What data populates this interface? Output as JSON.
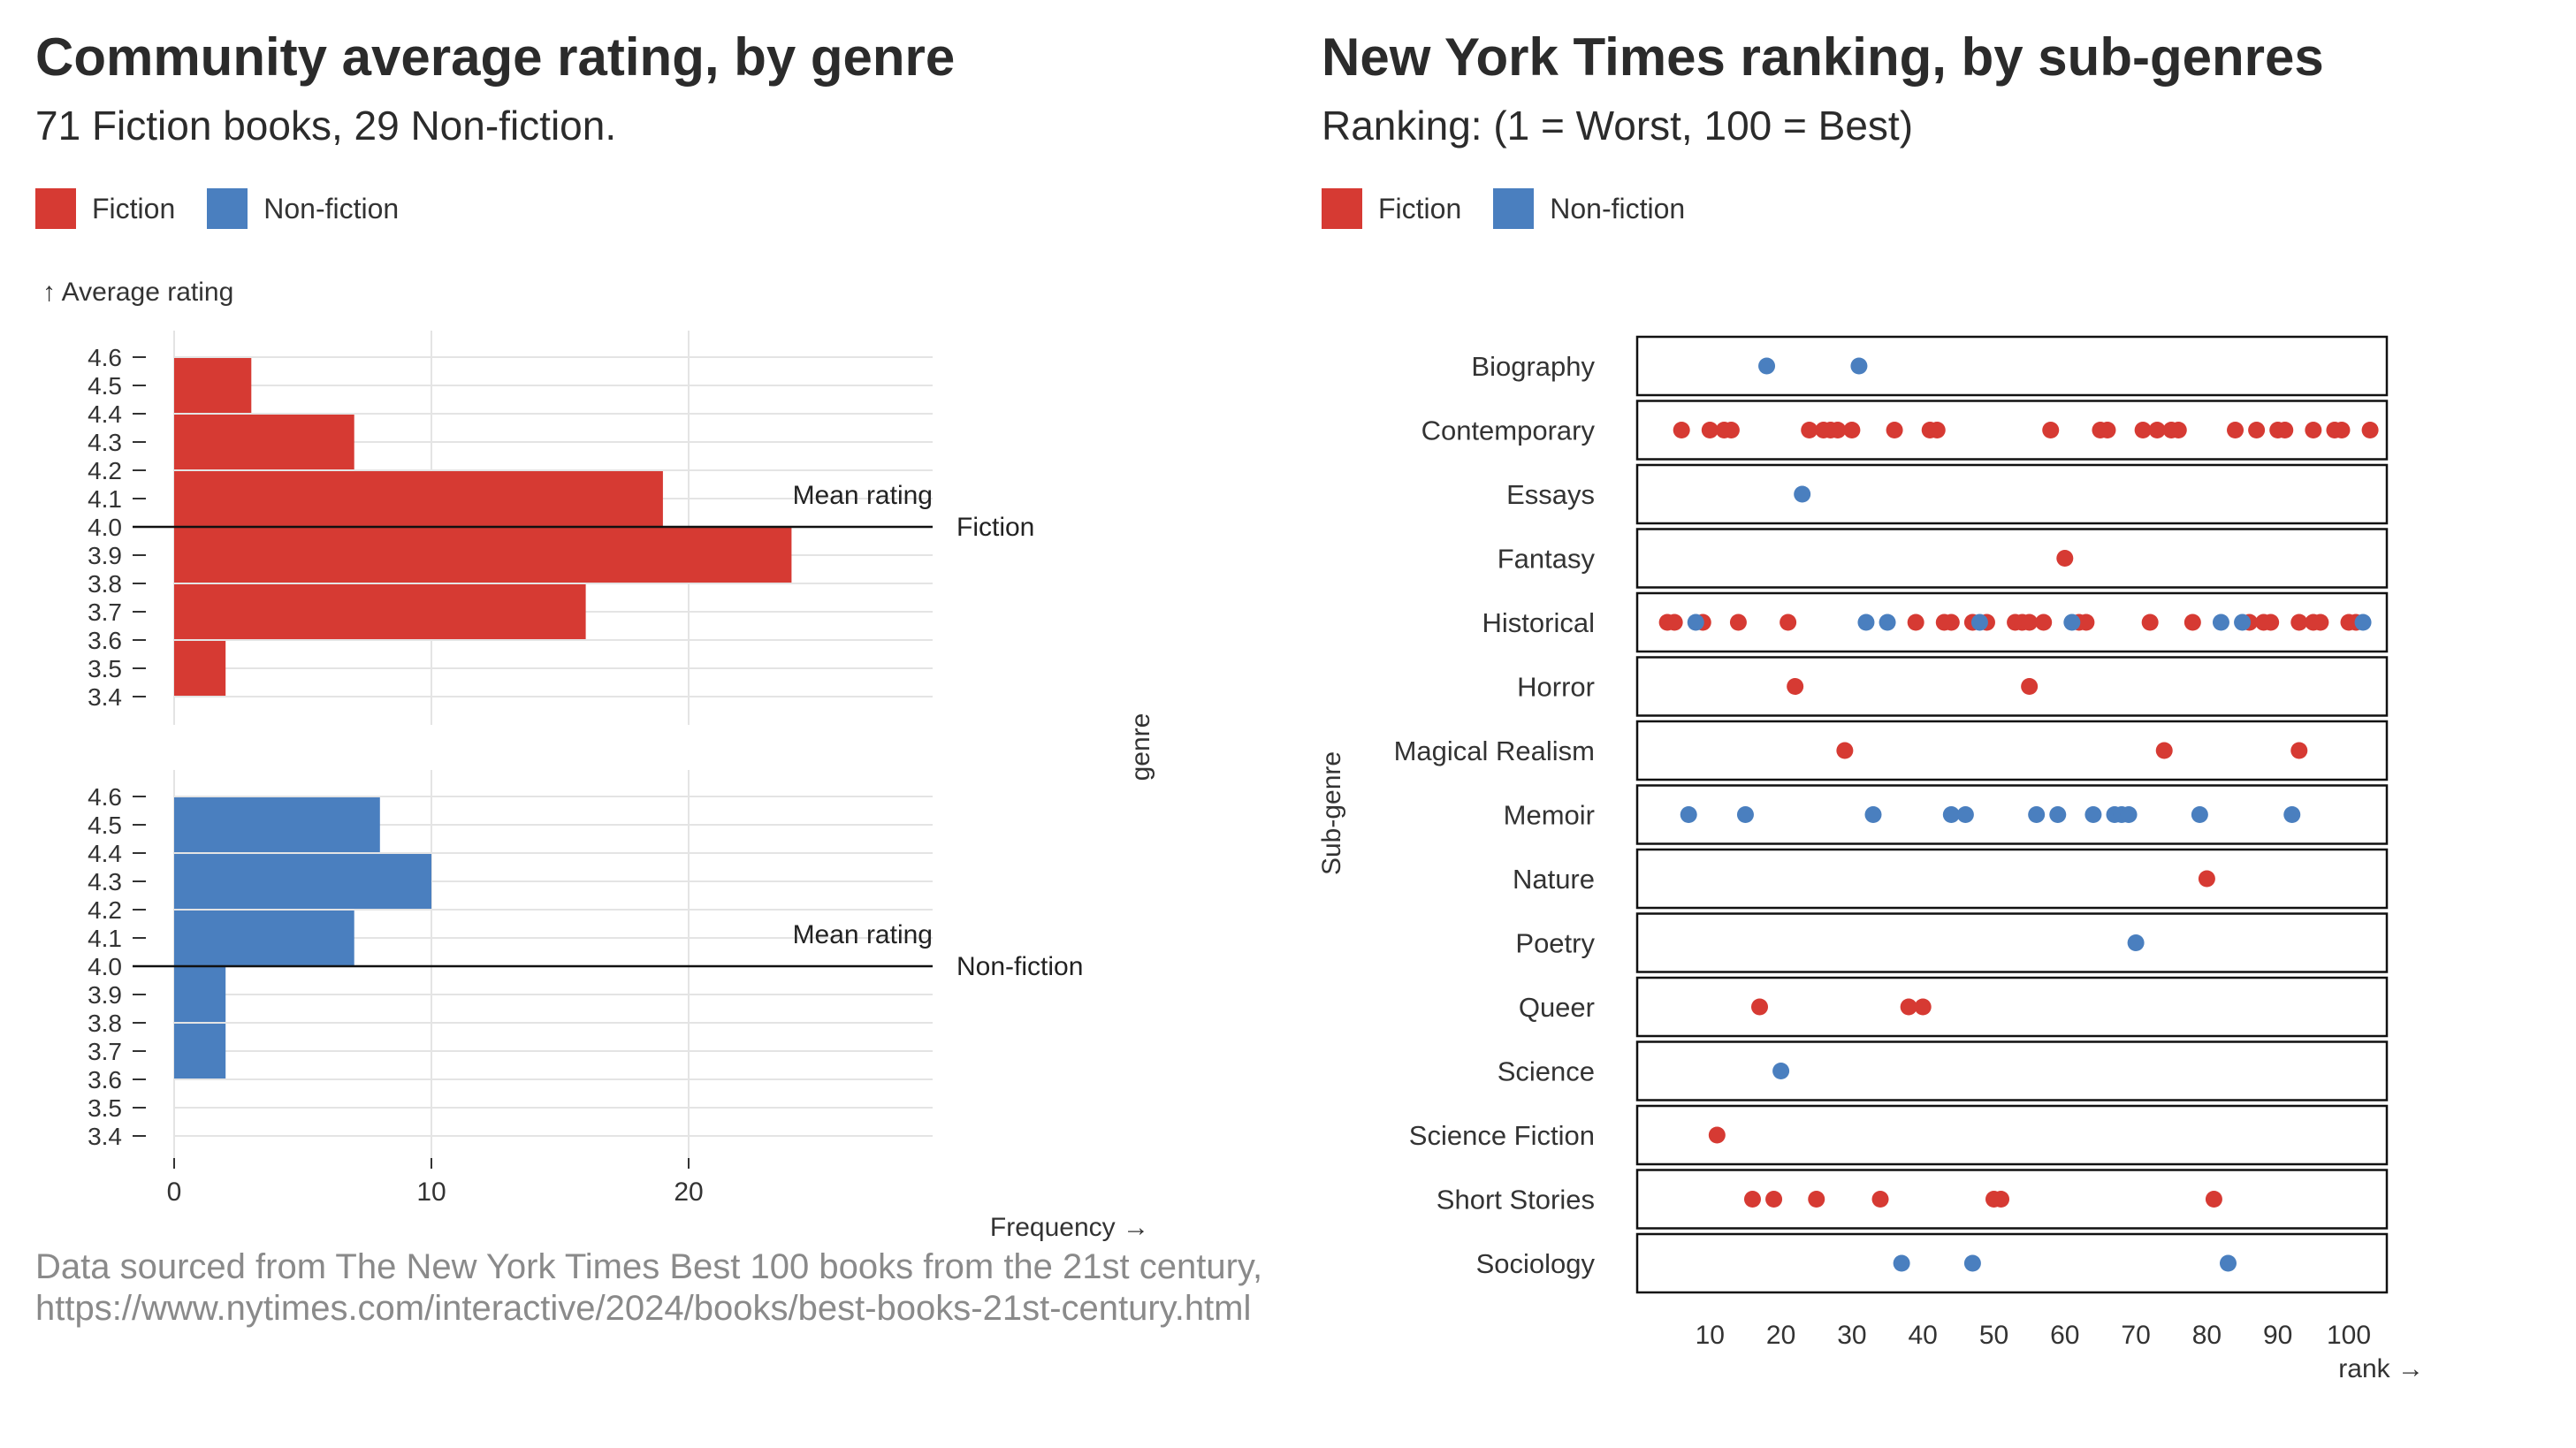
{
  "left": {
    "title": "Community average rating, by genre",
    "subtitle": "71 Fiction books, 29 Non-fiction.",
    "legend": [
      {
        "label": "Fiction",
        "color": "#d63a33"
      },
      {
        "label": "Non-fiction",
        "color": "#4a7fbf"
      }
    ],
    "footnote": "Data sourced from The New York Times Best 100 books from the 21st century, https://www.nytimes.com/interactive/2024/books/best-books-21st-century.html"
  },
  "right": {
    "title": "New York Times ranking, by sub-genres",
    "subtitle": "Ranking: (1 = Worst, 100 = Best)",
    "legend": [
      {
        "label": "Fiction",
        "color": "#d63a33"
      },
      {
        "label": "Non-fiction",
        "color": "#4a7fbf"
      }
    ]
  },
  "chart_data": [
    {
      "type": "bar",
      "orientation": "horizontal",
      "ylabel": "↑ Average rating",
      "xlabel": "Frequency →",
      "facet_label": "genre",
      "y_ticks": [
        "4.6",
        "4.5",
        "4.4",
        "4.3",
        "4.2",
        "4.1",
        "4.0",
        "3.9",
        "3.8",
        "3.7",
        "3.6",
        "3.5",
        "3.4"
      ],
      "x_ticks": [
        "0",
        "10",
        "20"
      ],
      "xlim": [
        0,
        29
      ],
      "ylim": [
        3.4,
        4.6
      ],
      "mean_label": "Mean rating",
      "mean_value": 4.0,
      "grid": true,
      "facets": [
        {
          "name": "Fiction",
          "color": "#d63a33",
          "bins": [
            {
              "from": 4.4,
              "to": 4.6,
              "count": 3
            },
            {
              "from": 4.2,
              "to": 4.4,
              "count": 7
            },
            {
              "from": 4.0,
              "to": 4.2,
              "count": 19
            },
            {
              "from": 3.8,
              "to": 4.0,
              "count": 24
            },
            {
              "from": 3.6,
              "to": 3.8,
              "count": 16
            },
            {
              "from": 3.4,
              "to": 3.6,
              "count": 2
            }
          ]
        },
        {
          "name": "Non-fiction",
          "color": "#4a7fbf",
          "bins": [
            {
              "from": 4.4,
              "to": 4.6,
              "count": 8
            },
            {
              "from": 4.2,
              "to": 4.4,
              "count": 10
            },
            {
              "from": 4.0,
              "to": 4.2,
              "count": 7
            },
            {
              "from": 3.8,
              "to": 4.0,
              "count": 2
            },
            {
              "from": 3.6,
              "to": 3.8,
              "count": 2
            }
          ]
        }
      ]
    },
    {
      "type": "scatter",
      "ylabel": "Sub-genre",
      "xlabel": "rank →",
      "x_ticks": [
        "10",
        "20",
        "30",
        "40",
        "50",
        "60",
        "70",
        "80",
        "90",
        "100"
      ],
      "xlim": [
        0,
        103
      ],
      "categories": [
        "Biography",
        "Contemporary",
        "Essays",
        "Fantasy",
        "Historical",
        "Horror",
        "Magical Realism",
        "Memoir",
        "Nature",
        "Poetry",
        "Queer",
        "Science",
        "Science Fiction",
        "Short Stories",
        "Sociology"
      ],
      "series": [
        {
          "name": "Fiction",
          "color": "#d63a33",
          "points": [
            {
              "category": "Contemporary",
              "x": [
                6,
                10,
                12,
                13,
                24,
                26,
                27,
                28,
                30,
                36,
                41,
                42,
                58,
                65,
                66,
                71,
                73,
                75,
                76,
                84,
                87,
                90,
                91,
                95,
                98,
                99,
                103
              ]
            },
            {
              "category": "Fantasy",
              "x": [
                60
              ]
            },
            {
              "category": "Historical",
              "x": [
                4,
                5,
                9,
                14,
                21,
                39,
                43,
                44,
                47,
                49,
                53,
                54,
                55,
                57,
                62,
                63,
                72,
                78,
                86,
                88,
                89,
                93,
                95,
                96,
                100,
                101
              ]
            },
            {
              "category": "Horror",
              "x": [
                22,
                55
              ]
            },
            {
              "category": "Magical Realism",
              "x": [
                29,
                74,
                93
              ]
            },
            {
              "category": "Nature",
              "x": [
                80
              ]
            },
            {
              "category": "Queer",
              "x": [
                17,
                38,
                40
              ]
            },
            {
              "category": "Science Fiction",
              "x": [
                11
              ]
            },
            {
              "category": "Short Stories",
              "x": [
                16,
                19,
                25,
                34,
                50,
                51,
                81
              ]
            }
          ]
        },
        {
          "name": "Non-fiction",
          "color": "#4a7fbf",
          "points": [
            {
              "category": "Biography",
              "x": [
                18,
                31
              ]
            },
            {
              "category": "Essays",
              "x": [
                23
              ]
            },
            {
              "category": "Historical",
              "x": [
                8,
                32,
                35,
                48,
                61,
                82,
                85,
                102
              ]
            },
            {
              "category": "Memoir",
              "x": [
                7,
                15,
                33,
                44,
                46,
                56,
                59,
                64,
                67,
                68,
                69,
                79,
                92
              ]
            },
            {
              "category": "Poetry",
              "x": [
                70
              ]
            },
            {
              "category": "Science",
              "x": [
                20
              ]
            },
            {
              "category": "Sociology",
              "x": [
                37,
                47,
                83
              ]
            }
          ]
        }
      ]
    }
  ]
}
